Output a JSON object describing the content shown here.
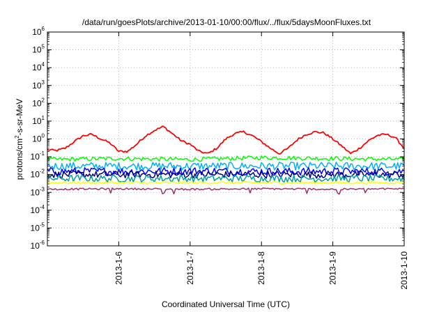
{
  "chart_data": {
    "type": "line",
    "title": "/data/run/goesPlots/archive/2013-01-10/00:00/flux/../flux/5daysMoonFluxes.txt",
    "xlabel": "Coordinated Universal Time (UTC)",
    "ylabel": "protons/cm²-s-sr-MeV",
    "ylabel_parts": [
      "protons/cm",
      "2",
      "-s-sr-MeV"
    ],
    "y_scale": "log",
    "ylim": [
      1e-06,
      1000000.0
    ],
    "y_ticks": [
      {
        "base": "10",
        "exp": "-6"
      },
      {
        "base": "10",
        "exp": "-5"
      },
      {
        "base": "10",
        "exp": "-4"
      },
      {
        "base": "10",
        "exp": "-3"
      },
      {
        "base": "10",
        "exp": "-2"
      },
      {
        "base": "10",
        "exp": "-1"
      },
      {
        "base": "10",
        "exp": "0"
      },
      {
        "base": "10",
        "exp": "1"
      },
      {
        "base": "10",
        "exp": "2"
      },
      {
        "base": "10",
        "exp": "3"
      },
      {
        "base": "10",
        "exp": "4"
      },
      {
        "base": "10",
        "exp": "5"
      },
      {
        "base": "10",
        "exp": "6"
      }
    ],
    "xlim": [
      "2013-01-05T00:00",
      "2013-01-10T00:00"
    ],
    "x_ticks": [
      "2013-1-6",
      "2013-1-7",
      "2013-1-8",
      "2013-1-9",
      "2013-1-10"
    ],
    "x_tick_dates": [
      "2013-01-06",
      "2013-01-07",
      "2013-01-08",
      "2013-01-09",
      "2013-01-10"
    ],
    "grid": true,
    "series": [
      {
        "color": "#ff0000",
        "x": [
          "2013-01-05T00:00",
          "2013-01-05T03:00",
          "2013-01-05T06:00",
          "2013-01-05T09:00",
          "2013-01-05T12:00",
          "2013-01-05T15:00",
          "2013-01-05T18:00",
          "2013-01-05T21:00",
          "2013-01-06T00:00",
          "2013-01-06T03:00",
          "2013-01-06T06:00",
          "2013-01-06T09:00",
          "2013-01-06T12:00",
          "2013-01-06T15:00",
          "2013-01-06T18:00",
          "2013-01-06T21:00",
          "2013-01-07T00:00",
          "2013-01-07T03:00",
          "2013-01-07T06:00",
          "2013-01-07T09:00",
          "2013-01-07T12:00",
          "2013-01-07T15:00",
          "2013-01-07T18:00",
          "2013-01-07T21:00",
          "2013-01-08T00:00",
          "2013-01-08T03:00",
          "2013-01-08T06:00",
          "2013-01-08T09:00",
          "2013-01-08T12:00",
          "2013-01-08T15:00",
          "2013-01-08T18:00",
          "2013-01-08T21:00",
          "2013-01-09T00:00",
          "2013-01-09T03:00",
          "2013-01-09T06:00",
          "2013-01-09T09:00",
          "2013-01-09T12:00",
          "2013-01-09T15:00",
          "2013-01-09T18:00",
          "2013-01-09T21:00",
          "2013-01-10T00:00"
        ],
        "values": [
          0.25,
          0.22,
          0.3,
          0.7,
          1.5,
          1.8,
          1.0,
          0.6,
          0.2,
          0.2,
          0.5,
          1.5,
          3.0,
          5.0,
          2.0,
          0.8,
          0.5,
          0.2,
          0.15,
          0.3,
          1.0,
          2.0,
          2.5,
          1.5,
          0.7,
          0.3,
          0.15,
          0.3,
          0.9,
          1.8,
          2.5,
          2.2,
          1.0,
          0.4,
          0.15,
          0.3,
          0.8,
          1.6,
          1.8,
          1.2,
          0.3
        ]
      },
      {
        "color": "#00ff00",
        "x": [
          "2013-01-05T00:00",
          "2013-01-06T00:00",
          "2013-01-07T00:00",
          "2013-01-08T00:00",
          "2013-01-09T00:00",
          "2013-01-10T00:00"
        ],
        "values": [
          0.07,
          0.08,
          0.07,
          0.09,
          0.08,
          0.07
        ]
      },
      {
        "color": "#00b0ff",
        "x": [
          "2013-01-05T00:00",
          "2013-01-06T00:00",
          "2013-01-07T00:00",
          "2013-01-08T00:00",
          "2013-01-09T00:00",
          "2013-01-10T00:00"
        ],
        "values": [
          0.03,
          0.03,
          0.03,
          0.03,
          0.03,
          0.03
        ]
      },
      {
        "color": "#0000ff",
        "x": [
          "2013-01-05T00:00",
          "2013-01-06T00:00",
          "2013-01-07T00:00",
          "2013-01-08T00:00",
          "2013-01-09T00:00",
          "2013-01-10T00:00"
        ],
        "values": [
          0.015,
          0.015,
          0.016,
          0.015,
          0.015,
          0.015
        ]
      },
      {
        "color": "#000080",
        "x": [
          "2013-01-05T00:00",
          "2013-01-06T00:00",
          "2013-01-07T00:00",
          "2013-01-08T00:00",
          "2013-01-09T00:00",
          "2013-01-10T00:00"
        ],
        "values": [
          0.01,
          0.01,
          0.01,
          0.01,
          0.01,
          0.01
        ]
      },
      {
        "color": "#00a0a0",
        "x": [
          "2013-01-05T00:00",
          "2013-01-06T00:00",
          "2013-01-07T00:00",
          "2013-01-08T00:00",
          "2013-01-09T00:00",
          "2013-01-10T00:00"
        ],
        "values": [
          0.006,
          0.006,
          0.006,
          0.006,
          0.006,
          0.006
        ]
      },
      {
        "color": "#ffff00",
        "x": [
          "2013-01-05T00:00",
          "2013-01-06T00:00",
          "2013-01-07T00:00",
          "2013-01-08T00:00",
          "2013-01-09T00:00",
          "2013-01-10T00:00"
        ],
        "values": [
          0.0035,
          0.0035,
          0.0035,
          0.0035,
          0.0035,
          0.0035
        ]
      },
      {
        "color": "#993366",
        "x": [
          "2013-01-05T00:00",
          "2013-01-06T00:00",
          "2013-01-07T00:00",
          "2013-01-08T00:00",
          "2013-01-09T00:00",
          "2013-01-10T00:00"
        ],
        "values": [
          0.0015,
          0.0016,
          0.0015,
          0.0016,
          0.0015,
          0.0016
        ]
      }
    ]
  }
}
